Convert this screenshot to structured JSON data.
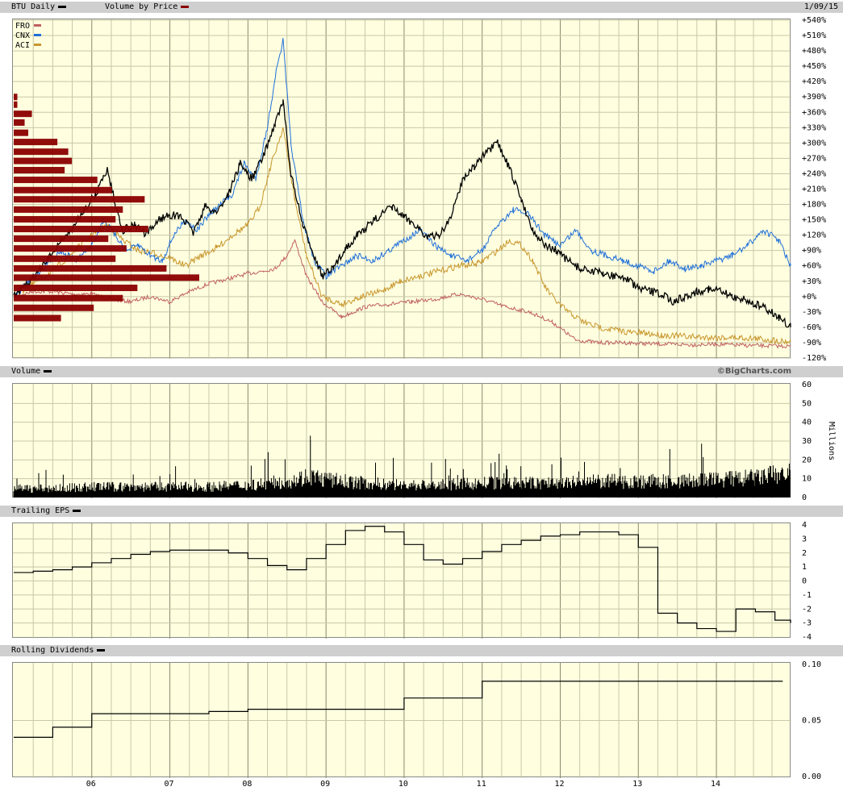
{
  "header": {
    "title": "BTU Daily",
    "title_swatch": "#000000",
    "overlay_label": "Volume by Price",
    "overlay_swatch": "#8b0000",
    "date": "1/09/15"
  },
  "panels": {
    "volume": {
      "label": "Volume",
      "credit": "©BigCharts.com",
      "unit_label": "Millions"
    },
    "eps": {
      "label": "Trailing EPS"
    },
    "dividends": {
      "label": "Rolling Dividends"
    }
  },
  "colors": {
    "background": "#ffffe0",
    "grid": "#c8c8a8",
    "btu": "#000000",
    "fro": "#c06060",
    "cnx": "#1f6fd8",
    "aci": "#c8962c",
    "volume_by_price": "#8b0000",
    "band": "#cfcfcf"
  },
  "chart_data": [
    {
      "id": "price",
      "type": "line",
      "x_tick_labels": [
        "06",
        "07",
        "08",
        "09",
        "10",
        "11",
        "12",
        "13",
        "14"
      ],
      "y_tick_labels": [
        "+540%",
        "+510%",
        "+480%",
        "+450%",
        "+420%",
        "+390%",
        "+360%",
        "+330%",
        "+300%",
        "+270%",
        "+240%",
        "+210%",
        "+180%",
        "+150%",
        "+120%",
        "+90%",
        "+60%",
        "+30%",
        "+0%",
        "-30%",
        "-60%",
        "-90%",
        "-120%"
      ],
      "ylim": [
        -120,
        540
      ],
      "legend_position": "top-left",
      "grid": true,
      "series": [
        {
          "name": "BTU",
          "color_key": "btu",
          "x": [
            2005.0,
            2005.15,
            2005.3,
            2005.45,
            2005.6,
            2005.75,
            2005.9,
            2006.05,
            2006.2,
            2006.3,
            2006.4,
            2006.55,
            2006.7,
            2006.85,
            2007.0,
            2007.15,
            2007.3,
            2007.45,
            2007.6,
            2007.75,
            2007.9,
            2008.05,
            2008.2,
            2008.35,
            2008.45,
            2008.55,
            2008.7,
            2008.85,
            2008.95,
            2009.1,
            2009.25,
            2009.4,
            2009.55,
            2009.7,
            2009.85,
            2010.0,
            2010.15,
            2010.3,
            2010.45,
            2010.6,
            2010.75,
            2010.9,
            2011.05,
            2011.2,
            2011.35,
            2011.5,
            2011.65,
            2011.8,
            2011.95,
            2012.1,
            2012.25,
            2012.4,
            2012.55,
            2012.7,
            2012.85,
            2013.0,
            2013.15,
            2013.3,
            2013.45,
            2013.6,
            2013.75,
            2013.9,
            2014.05,
            2014.2,
            2014.35,
            2014.5,
            2014.65,
            2014.8,
            2014.95
          ],
          "values": [
            0,
            20,
            45,
            75,
            110,
            130,
            170,
            200,
            250,
            180,
            130,
            140,
            120,
            150,
            160,
            155,
            125,
            175,
            165,
            200,
            260,
            230,
            275,
            340,
            380,
            240,
            140,
            80,
            40,
            55,
            95,
            120,
            140,
            160,
            175,
            155,
            140,
            115,
            120,
            155,
            230,
            255,
            280,
            300,
            250,
            190,
            130,
            100,
            90,
            70,
            55,
            50,
            45,
            40,
            35,
            15,
            10,
            5,
            -10,
            0,
            10,
            15,
            10,
            0,
            -5,
            -15,
            -25,
            -40,
            -60
          ]
        },
        {
          "name": "FRO",
          "color_key": "fro",
          "x": [
            2005.0,
            2005.25,
            2005.5,
            2005.75,
            2006.0,
            2006.25,
            2006.5,
            2006.75,
            2007.0,
            2007.25,
            2007.5,
            2007.75,
            2008.0,
            2008.2,
            2008.35,
            2008.5,
            2008.6,
            2008.75,
            2008.95,
            2009.2,
            2009.5,
            2009.8,
            2010.1,
            2010.4,
            2010.7,
            2011.0,
            2011.3,
            2011.6,
            2011.9,
            2012.2,
            2012.5,
            2012.8,
            2013.1,
            2013.4,
            2013.7,
            2014.0,
            2014.3,
            2014.6,
            2014.95
          ],
          "values": [
            0,
            10,
            10,
            5,
            5,
            -5,
            -10,
            0,
            -10,
            10,
            25,
            35,
            45,
            50,
            55,
            80,
            110,
            40,
            -10,
            -40,
            -20,
            -15,
            -10,
            -5,
            5,
            -5,
            -20,
            -30,
            -50,
            -85,
            -90,
            -90,
            -92,
            -93,
            -94,
            -93,
            -95,
            -96,
            -97
          ]
        },
        {
          "name": "CNX",
          "color_key": "cnx",
          "x": [
            2005.0,
            2005.2,
            2005.4,
            2005.6,
            2005.8,
            2006.0,
            2006.15,
            2006.3,
            2006.45,
            2006.6,
            2006.75,
            2006.9,
            2007.05,
            2007.2,
            2007.35,
            2007.5,
            2007.65,
            2007.8,
            2007.95,
            2008.1,
            2008.25,
            2008.35,
            2008.45,
            2008.55,
            2008.7,
            2008.85,
            2009.0,
            2009.2,
            2009.4,
            2009.6,
            2009.8,
            2010.0,
            2010.2,
            2010.4,
            2010.6,
            2010.8,
            2011.0,
            2011.2,
            2011.4,
            2011.6,
            2011.8,
            2012.0,
            2012.2,
            2012.4,
            2012.6,
            2012.8,
            2013.0,
            2013.2,
            2013.4,
            2013.6,
            2013.8,
            2014.0,
            2014.2,
            2014.4,
            2014.6,
            2014.8,
            2014.95
          ],
          "values": [
            0,
            30,
            60,
            90,
            70,
            100,
            150,
            120,
            90,
            100,
            80,
            70,
            120,
            150,
            130,
            160,
            180,
            200,
            260,
            230,
            330,
            430,
            500,
            300,
            150,
            70,
            40,
            60,
            80,
            70,
            90,
            110,
            130,
            100,
            80,
            70,
            90,
            140,
            170,
            160,
            120,
            100,
            130,
            90,
            80,
            70,
            60,
            50,
            70,
            55,
            60,
            70,
            80,
            100,
            130,
            110,
            60
          ]
        },
        {
          "name": "ACI",
          "color_key": "aci",
          "x": [
            2005.0,
            2005.25,
            2005.5,
            2005.75,
            2006.0,
            2006.2,
            2006.4,
            2006.6,
            2006.8,
            2007.0,
            2007.2,
            2007.4,
            2007.6,
            2007.8,
            2008.0,
            2008.15,
            2008.3,
            2008.45,
            2008.6,
            2008.75,
            2008.95,
            2009.2,
            2009.45,
            2009.7,
            2009.95,
            2010.2,
            2010.45,
            2010.7,
            2010.95,
            2011.2,
            2011.35,
            2011.5,
            2011.65,
            2011.8,
            2011.95,
            2012.1,
            2012.3,
            2012.5,
            2012.7,
            2012.9,
            2013.1,
            2013.3,
            2013.5,
            2013.7,
            2013.9,
            2014.1,
            2014.3,
            2014.5,
            2014.7,
            2014.95
          ],
          "values": [
            0,
            25,
            50,
            85,
            120,
            140,
            110,
            90,
            85,
            75,
            60,
            80,
            95,
            120,
            140,
            175,
            260,
            330,
            190,
            80,
            0,
            -15,
            0,
            10,
            30,
            40,
            50,
            60,
            65,
            90,
            110,
            100,
            70,
            20,
            -10,
            -30,
            -50,
            -60,
            -65,
            -70,
            -72,
            -75,
            -77,
            -78,
            -80,
            -80,
            -80,
            -82,
            -85,
            -88
          ]
        }
      ]
    },
    {
      "id": "volume_by_price",
      "type": "bar",
      "orientation": "horizontal",
      "y_levels": [
        390,
        375,
        357,
        340,
        320,
        302,
        283,
        265,
        247,
        228,
        208,
        190,
        170,
        151,
        132,
        113,
        94,
        74,
        55,
        37,
        17,
        -3,
        -22,
        -42
      ],
      "values": [
        1,
        1,
        5,
        3,
        4,
        12,
        15,
        16,
        14,
        23,
        27,
        36,
        30,
        28,
        37,
        26,
        31,
        28,
        42,
        51,
        34,
        30,
        22,
        13
      ]
    },
    {
      "id": "volume",
      "type": "bar",
      "ylabel": "Millions",
      "ylim": [
        0,
        60
      ],
      "y_tick_labels": [
        "60",
        "50",
        "40",
        "30",
        "20",
        "10",
        "0"
      ],
      "x": [
        2005.0,
        2005.5,
        2006.0,
        2006.5,
        2007.0,
        2007.5,
        2008.0,
        2008.5,
        2008.8,
        2009.0,
        2009.5,
        2010.0,
        2010.5,
        2011.0,
        2011.5,
        2012.0,
        2012.5,
        2013.0,
        2013.5,
        2014.0,
        2014.5,
        2014.95
      ],
      "values": [
        5,
        5,
        6,
        6,
        6,
        6,
        7,
        9,
        12,
        10,
        8,
        7,
        7,
        8,
        8,
        8,
        9,
        9,
        9,
        10,
        11,
        14
      ]
    },
    {
      "id": "eps",
      "type": "line",
      "step": true,
      "ylim": [
        -4,
        4
      ],
      "y_tick_labels": [
        "4",
        "3",
        "2",
        "1",
        "0",
        "-1",
        "-2",
        "-3",
        "-4"
      ],
      "x": [
        2005.0,
        2005.25,
        2005.5,
        2005.75,
        2006.0,
        2006.25,
        2006.5,
        2006.75,
        2007.0,
        2007.25,
        2007.5,
        2007.75,
        2008.0,
        2008.25,
        2008.5,
        2008.75,
        2009.0,
        2009.25,
        2009.5,
        2009.75,
        2010.0,
        2010.25,
        2010.5,
        2010.75,
        2011.0,
        2011.25,
        2011.5,
        2011.75,
        2012.0,
        2012.25,
        2012.5,
        2012.75,
        2013.0,
        2013.25,
        2013.5,
        2013.75,
        2014.0,
        2014.25,
        2014.5,
        2014.75,
        2014.95
      ],
      "values": [
        0.6,
        0.7,
        0.8,
        1.0,
        1.3,
        1.6,
        1.9,
        2.1,
        2.2,
        2.2,
        2.2,
        2.0,
        1.6,
        1.1,
        0.8,
        1.6,
        2.6,
        3.6,
        3.9,
        3.5,
        2.6,
        1.5,
        1.2,
        1.6,
        2.1,
        2.6,
        2.9,
        3.2,
        3.3,
        3.5,
        3.5,
        3.3,
        2.4,
        -2.3,
        -3.0,
        -3.4,
        -3.6,
        -2.0,
        -2.2,
        -2.8,
        -3.0
      ]
    },
    {
      "id": "dividends",
      "type": "line",
      "step": true,
      "ylim": [
        0,
        0.1
      ],
      "y_tick_labels": [
        "0.10",
        "0.05",
        "0.00"
      ],
      "x": [
        2005.0,
        2005.5,
        2006.0,
        2006.5,
        2007.0,
        2007.5,
        2008.0,
        2008.5,
        2009.0,
        2009.5,
        2010.0,
        2010.5,
        2011.0,
        2011.5,
        2012.0,
        2012.5,
        2013.0,
        2013.5,
        2014.0,
        2014.5,
        2014.85
      ],
      "values": [
        0.035,
        0.044,
        0.056,
        0.056,
        0.056,
        0.058,
        0.06,
        0.06,
        0.06,
        0.06,
        0.07,
        0.07,
        0.085,
        0.085,
        0.085,
        0.085,
        0.085,
        0.085,
        0.085,
        0.085,
        0.085
      ]
    }
  ]
}
